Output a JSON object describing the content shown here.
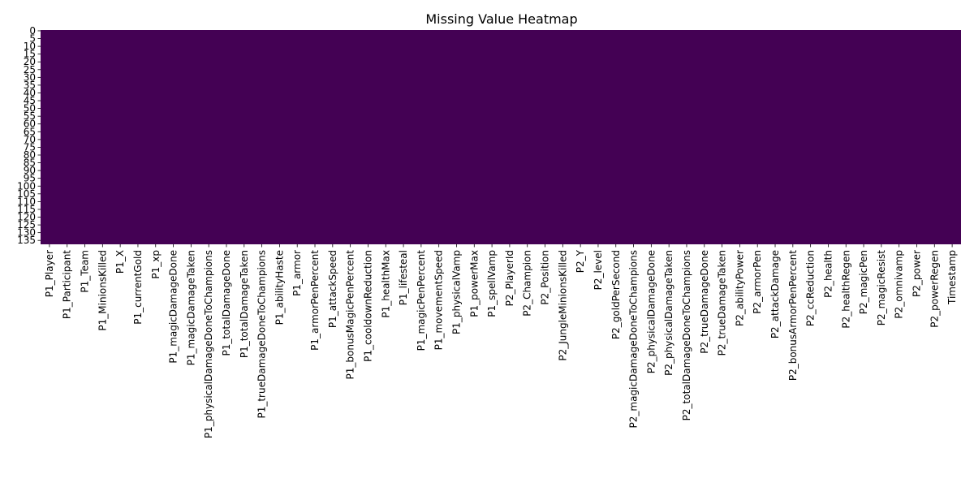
{
  "chart_data": {
    "type": "heatmap",
    "title": "Missing Value Heatmap",
    "xlabel": "",
    "ylabel": "",
    "colors": {
      "cell": "#440154",
      "background": "#ffffff",
      "text": "#000000"
    },
    "grid": false,
    "legend": "none",
    "row_count": 138,
    "ylim": [
      0,
      138
    ],
    "y_tick_labels": [
      "0",
      "5",
      "10",
      "15",
      "20",
      "25",
      "30",
      "35",
      "40",
      "45",
      "50",
      "55",
      "60",
      "65",
      "70",
      "75",
      "80",
      "85",
      "90",
      "95",
      "100",
      "105",
      "110",
      "115",
      "120",
      "125",
      "130",
      "135"
    ],
    "x_tick_labels": [
      "P1_Player",
      "P1_Participant",
      "P1_Team",
      "P1_MinionsKilled",
      "P1_X",
      "P1_currentGold",
      "P1_xp",
      "P1_magicDamageDone",
      "P1_magicDamageTaken",
      "P1_physicalDamageDoneToChampions",
      "P1_totalDamageDone",
      "P1_totalDamageTaken",
      "P1_trueDamageDoneToChampions",
      "P1_abilityHaste",
      "P1_armor",
      "P1_armorPenPercent",
      "P1_attackSpeed",
      "P1_bonusMagicPenPercent",
      "P1_cooldownReduction",
      "P1_healthMax",
      "P1_lifesteal",
      "P1_magicPenPercent",
      "P1_movementSpeed",
      "P1_physicalVamp",
      "P1_powerMax",
      "P1_spellVamp",
      "P2_PlayerId",
      "P2_Champion",
      "P2_Position",
      "P2_JungleMinionsKilled",
      "P2_Y",
      "P2_level",
      "P2_goldPerSecond",
      "P2_magicDamageDoneToChampions",
      "P2_physicalDamageDone",
      "P2_physicalDamageTaken",
      "P2_totalDamageDoneToChampions",
      "P2_trueDamageDone",
      "P2_trueDamageTaken",
      "P2_abilityPower",
      "P2_armorPen",
      "P2_attackDamage",
      "P2_bonusArmorPenPercent",
      "P2_ccReduction",
      "P2_health",
      "P2_healthRegen",
      "P2_magicPen",
      "P2_magicResist",
      "P2_omnivamp",
      "P2_power",
      "P2_powerRegen",
      "Timestamp"
    ],
    "missing_cells": []
  }
}
